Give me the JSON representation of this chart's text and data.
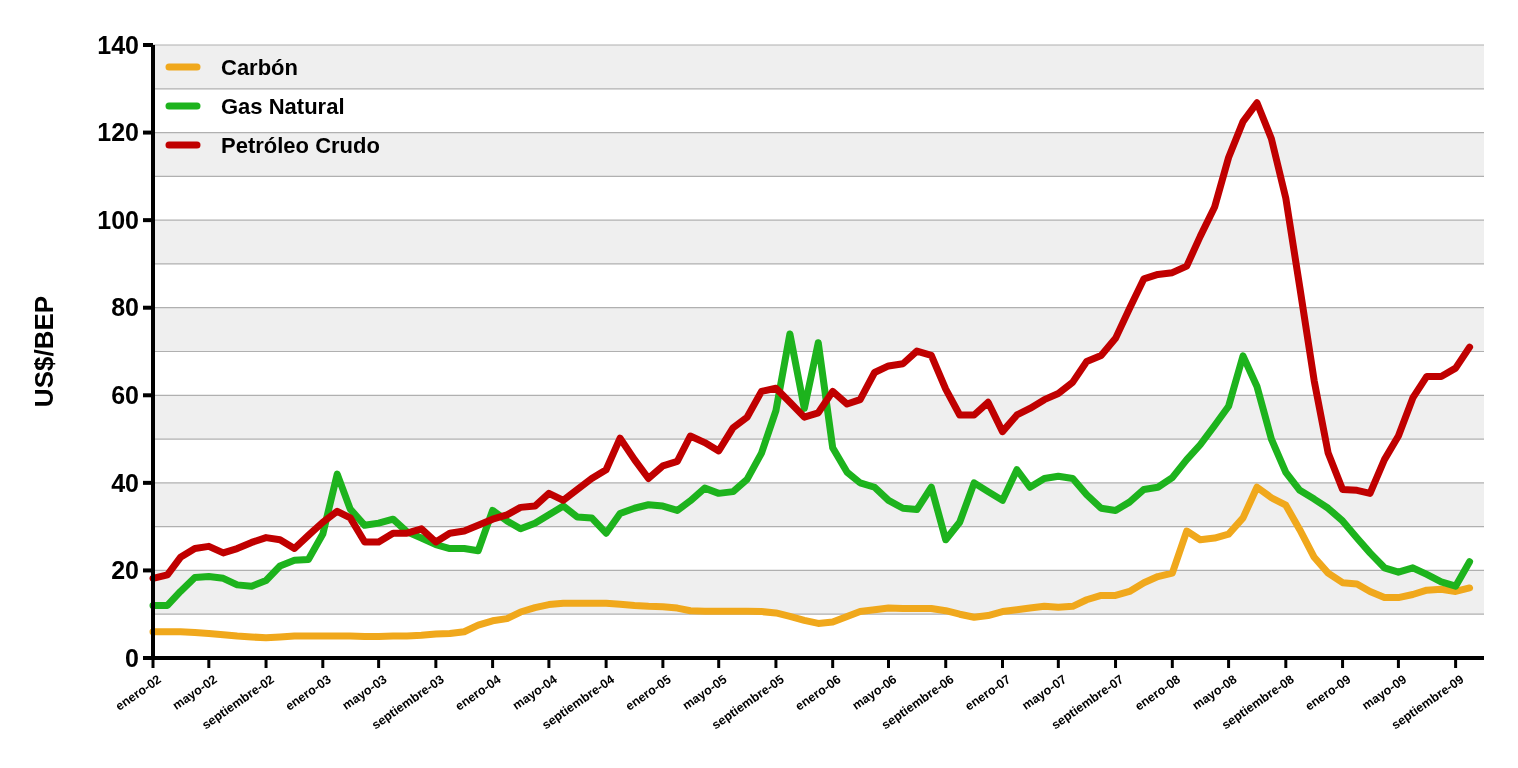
{
  "chart_data": {
    "type": "line",
    "ylabel": "US$/BEP",
    "x": [
      "2002-01",
      "2002-02",
      "2002-03",
      "2002-04",
      "2002-05",
      "2002-06",
      "2002-07",
      "2002-08",
      "2002-09",
      "2002-10",
      "2002-11",
      "2002-12",
      "2003-01",
      "2003-02",
      "2003-03",
      "2003-04",
      "2003-05",
      "2003-06",
      "2003-07",
      "2003-08",
      "2003-09",
      "2003-10",
      "2003-11",
      "2003-12",
      "2004-01",
      "2004-02",
      "2004-03",
      "2004-04",
      "2004-05",
      "2004-06",
      "2004-07",
      "2004-08",
      "2004-09",
      "2004-10",
      "2004-11",
      "2004-12",
      "2005-01",
      "2005-02",
      "2005-03",
      "2005-04",
      "2005-05",
      "2005-06",
      "2005-07",
      "2005-08",
      "2005-09",
      "2005-10",
      "2005-11",
      "2005-12",
      "2006-01",
      "2006-02",
      "2006-03",
      "2006-04",
      "2006-05",
      "2006-06",
      "2006-07",
      "2006-08",
      "2006-09",
      "2006-10",
      "2006-11",
      "2006-12",
      "2007-01",
      "2007-02",
      "2007-03",
      "2007-04",
      "2007-05",
      "2007-06",
      "2007-07",
      "2007-08",
      "2007-09",
      "2007-10",
      "2007-11",
      "2007-12",
      "2008-01",
      "2008-02",
      "2008-03",
      "2008-04",
      "2008-05",
      "2008-06",
      "2008-07",
      "2008-08",
      "2008-09",
      "2008-10",
      "2008-11",
      "2008-12",
      "2009-01",
      "2009-02",
      "2009-03",
      "2009-04",
      "2009-05",
      "2009-06",
      "2009-07",
      "2009-08",
      "2009-09",
      "2009-10"
    ],
    "series": [
      {
        "name": "Carbón",
        "color": "#f0a81c",
        "values": [
          6,
          6,
          6,
          5.8,
          5.6,
          5.3,
          5,
          4.8,
          4.6,
          4.8,
          5,
          5,
          5,
          5,
          5,
          4.9,
          4.9,
          5,
          5,
          5.2,
          5.5,
          5.6,
          6,
          7.5,
          8.5,
          9,
          10.5,
          11.5,
          12.2,
          12.5,
          12.5,
          12.5,
          12.5,
          12.3,
          12,
          11.8,
          11.7,
          11.4,
          10.8,
          10.7,
          10.7,
          10.7,
          10.7,
          10.6,
          10.3,
          9.5,
          8.6,
          7.9,
          8.2,
          9.5,
          10.6,
          11,
          11.4,
          11.3,
          11.3,
          11.3,
          10.8,
          10,
          9.3,
          9.7,
          10.6,
          11,
          11.4,
          11.8,
          11.6,
          11.8,
          13.3,
          14.3,
          14.3,
          15.2,
          17.2,
          18.6,
          19.4,
          29,
          27,
          27.4,
          28.3,
          32,
          39,
          36.6,
          34.9,
          29.3,
          23,
          19.4,
          17.2,
          16.9,
          15.2,
          13.8,
          13.8,
          14.5,
          15.5,
          15.7,
          15.2,
          16
        ]
      },
      {
        "name": "Gas Natural",
        "color": "#1db31d",
        "values": [
          12,
          12,
          15.2,
          18.4,
          18.6,
          18.2,
          16.7,
          16.4,
          17.7,
          21,
          22.3,
          22.5,
          28.3,
          42,
          34,
          30.3,
          30.8,
          31.7,
          28.8,
          27.4,
          25.9,
          25,
          25,
          24.5,
          33.7,
          31.3,
          29.5,
          30.8,
          32.7,
          34.7,
          32.2,
          32,
          28.5,
          33,
          34.2,
          35,
          34.7,
          33.7,
          35.9,
          38.8,
          37.6,
          38,
          40.8,
          46.8,
          56.5,
          74,
          57,
          72,
          48,
          42.4,
          40,
          39,
          36,
          34.2,
          33.9,
          39,
          27,
          31,
          40,
          38,
          36,
          43,
          39,
          41,
          41.5,
          41,
          37.3,
          34.2,
          33.7,
          35.6,
          38.5,
          39,
          41.2,
          45.3,
          48.7,
          53.1,
          57.5,
          69,
          62,
          50,
          42.4,
          38.3,
          36.3,
          34.2,
          31.3,
          27.4,
          24,
          20.6,
          19.6,
          20.6,
          19.1,
          17.4,
          16.4,
          22
        ]
      },
      {
        "name": "Petróleo Crudo",
        "color": "#c00000",
        "values": [
          18.2,
          19,
          23,
          25,
          25.5,
          24,
          25,
          26.4,
          27.5,
          27,
          25,
          28,
          31,
          33.5,
          32,
          26.5,
          26.5,
          28.5,
          28.5,
          29.5,
          26.5,
          28.5,
          29,
          30.3,
          31.7,
          32.7,
          34.4,
          34.7,
          37.6,
          36,
          38.5,
          41,
          43,
          50.2,
          45.3,
          41,
          43.9,
          44.9,
          50.7,
          49.2,
          47.3,
          52.6,
          55,
          60.9,
          61.6,
          58.4,
          55,
          56,
          60.9,
          58,
          59,
          65.2,
          66.7,
          67.2,
          70.1,
          69.1,
          61.4,
          55.5,
          55.5,
          58.4,
          51.7,
          55.5,
          57,
          59,
          60.4,
          63,
          67.7,
          69.1,
          73,
          79.8,
          86.6,
          87.6,
          88,
          89.5,
          96.3,
          103,
          114.3,
          122.5,
          126.8,
          118.6,
          105,
          84.7,
          63.3,
          46.8,
          38.5,
          38.3,
          37.6,
          45.3,
          50.7,
          59.4,
          64.3,
          64.3,
          66.2,
          71
        ]
      }
    ],
    "xlim": [
      "2002-01",
      "2009-11"
    ],
    "xticks": [
      {
        "value": "2002-01",
        "label": "enero-02"
      },
      {
        "value": "2002-05",
        "label": "mayo-02"
      },
      {
        "value": "2002-09",
        "label": "septiembre-02"
      },
      {
        "value": "2003-01",
        "label": "enero-03"
      },
      {
        "value": "2003-05",
        "label": "mayo-03"
      },
      {
        "value": "2003-09",
        "label": "septiembre-03"
      },
      {
        "value": "2004-01",
        "label": "enero-04"
      },
      {
        "value": "2004-05",
        "label": "mayo-04"
      },
      {
        "value": "2004-09",
        "label": "septiembre-04"
      },
      {
        "value": "2005-01",
        "label": "enero-05"
      },
      {
        "value": "2005-05",
        "label": "mayo-05"
      },
      {
        "value": "2005-09",
        "label": "septiembre-05"
      },
      {
        "value": "2006-01",
        "label": "enero-06"
      },
      {
        "value": "2006-05",
        "label": "mayo-06"
      },
      {
        "value": "2006-09",
        "label": "septiembre-06"
      },
      {
        "value": "2007-01",
        "label": "enero-07"
      },
      {
        "value": "2007-05",
        "label": "mayo-07"
      },
      {
        "value": "2007-09",
        "label": "septiembre-07"
      },
      {
        "value": "2008-01",
        "label": "enero-08"
      },
      {
        "value": "2008-05",
        "label": "mayo-08"
      },
      {
        "value": "2008-09",
        "label": "septiembre-08"
      },
      {
        "value": "2009-01",
        "label": "enero-09"
      },
      {
        "value": "2009-05",
        "label": "mayo-09"
      },
      {
        "value": "2009-09",
        "label": "septiembre-09"
      }
    ],
    "ylim": [
      0,
      140
    ],
    "yticks": [
      0,
      {
        "value": 10,
        "label": null
      },
      20,
      {
        "value": 30,
        "label": null
      },
      40,
      {
        "value": 50,
        "label": null
      },
      60,
      {
        "value": 70,
        "label": null
      },
      80,
      {
        "value": 90,
        "label": null
      },
      100,
      {
        "value": 110,
        "label": null
      },
      120,
      {
        "value": 130,
        "label": null
      },
      140
    ],
    "grid": "y",
    "legend": "top left",
    "marker": "none",
    "line_style": "solid"
  }
}
